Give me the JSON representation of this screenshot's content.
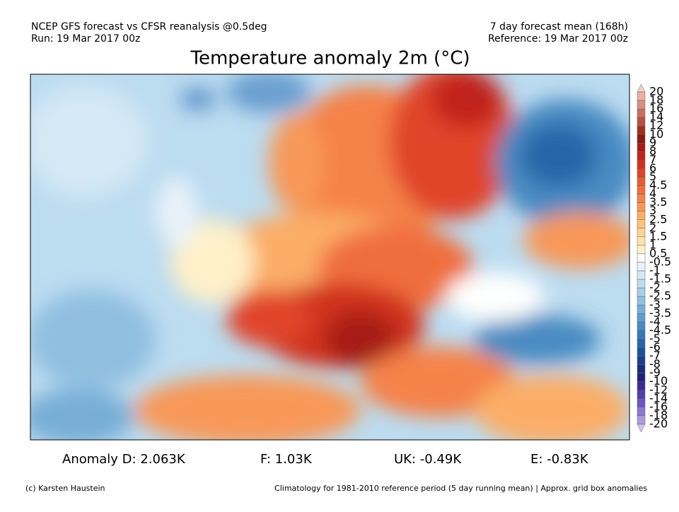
{
  "header": {
    "left_line1": "NCEP GFS forecast vs CFSR reanalysis @0.5deg",
    "left_line2": "Run: 19 Mar 2017 00z",
    "right_line1": "7 day forecast mean (168h)",
    "right_line2": "Reference: 19 Mar 2017 00z"
  },
  "title": "Temperature anomaly 2m (°C)",
  "colorbar": {
    "labels": [
      "20",
      "18",
      "16",
      "14",
      "12",
      "10",
      "9",
      "8",
      "7",
      "6",
      "5",
      "4.5",
      "4",
      "3.5",
      "3",
      "2.5",
      "2",
      "1.5",
      "1",
      "0.5",
      "-0.5",
      "-1",
      "-1.5",
      "-2",
      "-2.5",
      "-3",
      "-3.5",
      "-4",
      "-4.5",
      "-5",
      "-6",
      "-7",
      "-8",
      "-9",
      "-10",
      "-12",
      "-14",
      "-16",
      "-18",
      "-20"
    ],
    "colors": [
      "#f4d0c8",
      "#e8b0a0",
      "#d89080",
      "#c87060",
      "#b85040",
      "#a03020",
      "#8b1a10",
      "#a51c18",
      "#c0241c",
      "#d0301f",
      "#e0442a",
      "#ea5a34",
      "#f06e3e",
      "#f5824a",
      "#f89858",
      "#fbad68",
      "#fdc27c",
      "#fed492",
      "#ffe3aa",
      "#fff0c8",
      "#ffffff",
      "#e8f2fa",
      "#d4e8f5",
      "#bfdcef",
      "#a8cee8",
      "#90bfe0",
      "#78aed6",
      "#609dcc",
      "#4a8bc2",
      "#3878b6",
      "#2866a8",
      "#1c5298",
      "#1a3f88",
      "#1c2c78",
      "#24207a",
      "#3a2c90",
      "#5040a8",
      "#6a58c0",
      "#8a78d0",
      "#aa9cde",
      "#ccc4ec"
    ]
  },
  "stats": [
    "Anomaly D: 2.063K",
    "F: 1.03K",
    "UK: -0.49K",
    "E: -0.83K"
  ],
  "footer": {
    "left": "(c) Karsten Haustein",
    "right": "Climatology for 1981-2010 reference period (5 day running mean) | Approx. grid box anomalies"
  }
}
